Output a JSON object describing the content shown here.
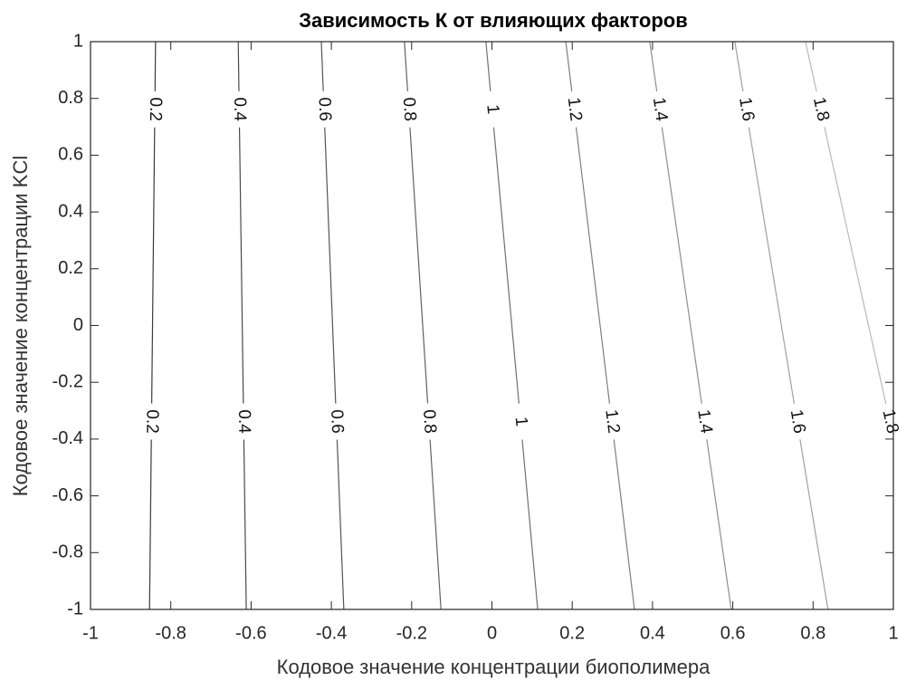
{
  "chart_data": {
    "type": "contour",
    "title": "Зависимость К от влияющих факторов",
    "xlabel": "Кодовое значение концентрации биополимера",
    "ylabel": "Кодовое значение концентрации KCl",
    "xlim": [
      -1,
      1
    ],
    "ylim": [
      -1,
      1
    ],
    "xticks": [
      -1,
      -0.8,
      -0.6,
      -0.4,
      -0.2,
      0,
      0.2,
      0.4,
      0.6,
      0.8,
      1
    ],
    "yticks": [
      -1,
      -0.8,
      -0.6,
      -0.4,
      -0.2,
      0,
      0.2,
      0.4,
      0.6,
      0.8,
      1
    ],
    "series": [
      {
        "level": 0.2,
        "color": "#3a3a3a",
        "x": [
          -0.853,
          -0.838
        ],
        "y": [
          -1,
          1
        ]
      },
      {
        "level": 0.4,
        "color": "#4a4a4a",
        "x": [
          -0.612,
          -0.632
        ],
        "y": [
          -1,
          1
        ]
      },
      {
        "level": 0.6,
        "color": "#555555",
        "x": [
          -0.369,
          -0.425
        ],
        "y": [
          -1,
          1
        ]
      },
      {
        "level": 0.8,
        "color": "#626262",
        "x": [
          -0.127,
          -0.218
        ],
        "y": [
          -1,
          1
        ]
      },
      {
        "level": 1,
        "color": "#707070",
        "x": [
          0.114,
          -0.015
        ],
        "y": [
          -1,
          1
        ]
      },
      {
        "level": 1.2,
        "color": "#7e7e7e",
        "x": [
          0.355,
          0.184
        ],
        "y": [
          -1,
          1
        ]
      },
      {
        "level": 1.4,
        "color": "#8e8e8e",
        "x": [
          0.596,
          0.393
        ],
        "y": [
          -1,
          1
        ]
      },
      {
        "level": 1.6,
        "color": "#a0a0a0",
        "x": [
          0.837,
          0.605
        ],
        "y": [
          -1,
          1
        ]
      },
      {
        "level": 1.8,
        "color": "#b8b8b8",
        "x": [
          1,
          0.781
        ],
        "y": [
          -0.394,
          1
        ]
      }
    ]
  }
}
